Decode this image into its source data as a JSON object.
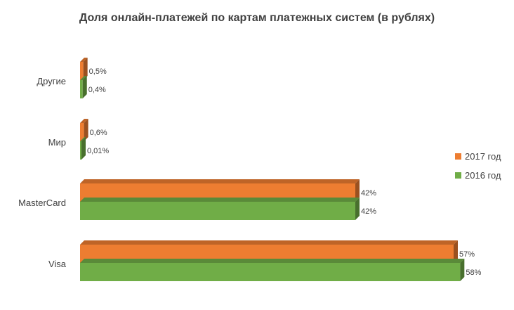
{
  "chart_data": {
    "type": "bar",
    "orientation": "horizontal",
    "style": "3d",
    "title": "Доля онлайн-платежей по картам платежных систем (в рублях)",
    "categories": [
      "Visa",
      "MasterCard",
      "Мир",
      "Другие"
    ],
    "series": [
      {
        "name": "2017 год",
        "color": "#ED7D31",
        "values": [
          57,
          42,
          0.6,
          0.5
        ],
        "labels": [
          "57%",
          "42%",
          "0,6%",
          "0,5%"
        ]
      },
      {
        "name": "2016 год",
        "color": "#70AD47",
        "values": [
          58,
          42,
          0.01,
          0.4
        ],
        "labels": [
          "58%",
          "42%",
          "0,01%",
          "0,4%"
        ]
      }
    ],
    "xlim": [
      0,
      60
    ],
    "grid": false,
    "legend_position": "right"
  }
}
